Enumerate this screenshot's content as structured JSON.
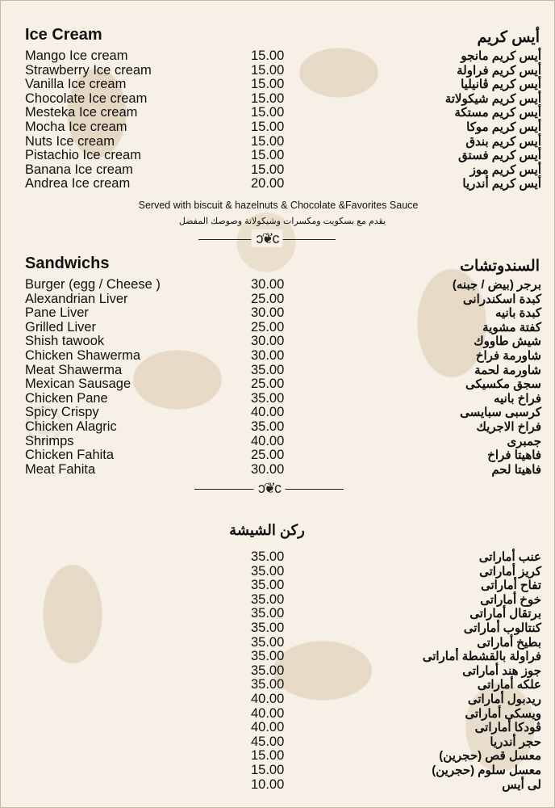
{
  "ice_cream": {
    "title_en": "Ice Cream",
    "title_ar": "أيس كريم",
    "items": [
      {
        "en": "Mango Ice cream",
        "price": "15.00",
        "ar": "أيس كريم مانجو"
      },
      {
        "en": "Strawberry Ice cream",
        "price": "15.00",
        "ar": "أيس كريم فراولة"
      },
      {
        "en": "Vanilla Ice cream",
        "price": "15.00",
        "ar": "أيس كريم ڤانيليا"
      },
      {
        "en": "Chocolate Ice cream",
        "price": "15.00",
        "ar": "أيس كريم شيكولاتة"
      },
      {
        "en": "Mesteka Ice cream",
        "price": "15.00",
        "ar": "أيس كريم مستكة"
      },
      {
        "en": "Mocha Ice cream",
        "price": "15.00",
        "ar": "أيس كريم موكا"
      },
      {
        "en": "Nuts Ice cream",
        "price": "15.00",
        "ar": "أيس كريم بندق"
      },
      {
        "en": "Pistachio Ice cream",
        "price": "15.00",
        "ar": "أيس كريم فستق"
      },
      {
        "en": "Banana Ice cream",
        "price": "15.00",
        "ar": "أيس كريم موز"
      },
      {
        "en": "Andrea Ice cream",
        "price": "20.00",
        "ar": "أيس كريم أندريا"
      }
    ],
    "note_en": "Served with biscuit & hazelnuts & Chocolate &Favorites Sauce",
    "note_ar": "يقدم مع بسكويت ومكسرات وشيكولاتة وصوصك المفضل"
  },
  "sandwiches": {
    "title_en": "Sandwichs",
    "title_ar": "السندوتشات",
    "items": [
      {
        "en": "Burger (egg / Cheese )",
        "price": "30.00",
        "ar": "برجر (بيض / جبنه)"
      },
      {
        "en": "Alexandrian Liver",
        "price": "25.00",
        "ar": "كبدة اسكندرانى"
      },
      {
        "en": "Pane Liver",
        "price": "30.00",
        "ar": "كبدة بانيه"
      },
      {
        "en": "Grilled Liver",
        "price": "25.00",
        "ar": "كفتة مشوية"
      },
      {
        "en": "Shish tawook",
        "price": "30.00",
        "ar": "شيش طاووك"
      },
      {
        "en": "Chicken Shawerma",
        "price": "30.00",
        "ar": "شاورمة فراخ"
      },
      {
        "en": "Meat Shawerma",
        "price": "35.00",
        "ar": "شاورمة لحمة"
      },
      {
        "en": "Mexican Sausage",
        "price": "25.00",
        "ar": "سجق مكسيكى"
      },
      {
        "en": "Chicken Pane",
        "price": "35.00",
        "ar": "فراخ بانيه"
      },
      {
        "en": "Spicy Crispy",
        "price": "40.00",
        "ar": "كرسبى سبايسى"
      },
      {
        "en": "Chicken Alagric",
        "price": "35.00",
        "ar": "فراخ الاجريك"
      },
      {
        "en": "Shrimps",
        "price": "40.00",
        "ar": "جمبرى"
      },
      {
        "en": "Chicken Fahita",
        "price": "25.00",
        "ar": "فاهيتا فراخ"
      },
      {
        "en": "Meat Fahita",
        "price": "30.00",
        "ar": "فاهيتا لحم"
      }
    ]
  },
  "shisha": {
    "title_ar": "ركن الشيشة",
    "items": [
      {
        "price": "35.00",
        "ar": "عنب أماراتى"
      },
      {
        "price": "35.00",
        "ar": "كريز أماراتى"
      },
      {
        "price": "35.00",
        "ar": "تفاح أماراتى"
      },
      {
        "price": "35.00",
        "ar": "خوخ أماراتى"
      },
      {
        "price": "35.00",
        "ar": "برتقال أماراتى"
      },
      {
        "price": "35.00",
        "ar": "كنتالوب أماراتى"
      },
      {
        "price": "35.00",
        "ar": "بطيخ أماراتى"
      },
      {
        "price": "35.00",
        "ar": "فراولة بالقشطة أماراتى"
      },
      {
        "price": "35.00",
        "ar": "جوز هند أماراتى"
      },
      {
        "price": "35.00",
        "ar": "علكه أماراتى"
      },
      {
        "price": "40.00",
        "ar": "ريدبول أماراتى"
      },
      {
        "price": "40.00",
        "ar": "ويسكى أماراتى"
      },
      {
        "price": "40.00",
        "ar": "ڤودكا أماراتى"
      },
      {
        "price": "45.00",
        "ar": "حجر أندريا"
      },
      {
        "price": "15.00",
        "ar": "معسل قص (حجرين)"
      },
      {
        "price": "15.00",
        "ar": "معسل سلوم (حجرين)"
      },
      {
        "price": "10.00",
        "ar": "لى أيس"
      }
    ]
  },
  "ornament_glyph": "ↄ❦c",
  "colors": {
    "background": "#f6f0e6",
    "pattern": "#d6c4a8",
    "text": "#111111"
  }
}
